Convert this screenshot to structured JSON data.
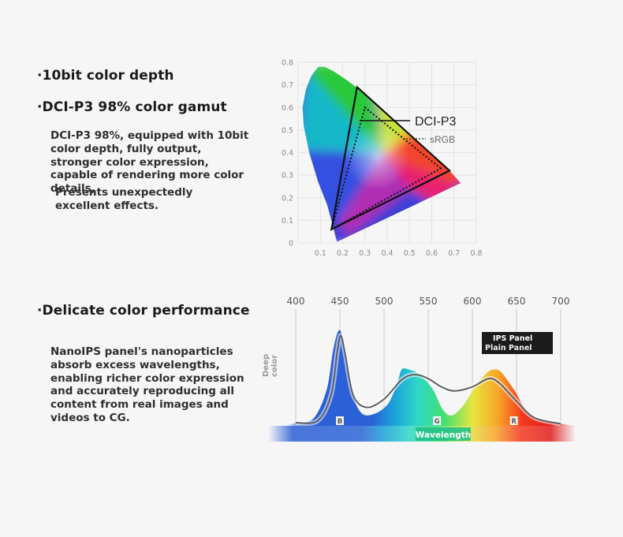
{
  "features": [
    {
      "heading": "·10bit color depth"
    },
    {
      "heading": "·DCI-P3 98% color gamut",
      "paragraph": "DCI-P3 98%, equipped with 10bit color depth, fully output, stronger color expression, capable of rendering more color details,",
      "paragraph2": "Presents unexpectedly excellent effects."
    },
    {
      "heading": "·Delicate color performance",
      "paragraph": "NanoIPS panel's nanoparticles absorb excess wavelengths, enabling richer color expression and accurately reproducing all content from real images and videos to CG."
    }
  ],
  "gamut_chart": {
    "type": "chromaticity-diagram",
    "x_ticks": [
      "0.1",
      "0.2",
      "0.3",
      "0.4",
      "0.5",
      "0.6",
      "0.7",
      "0.8"
    ],
    "y_ticks": [
      "0",
      "0.1",
      "0.2",
      "0.3",
      "0.4",
      "0.5",
      "0.6",
      "0.7",
      "0.8"
    ],
    "xlim": [
      0,
      0.8
    ],
    "ylim": [
      0,
      0.8
    ],
    "grid": true,
    "dci_label": "DCI-P3",
    "srgb_label": "sRGB",
    "dci_p3": [
      [
        0.68,
        0.32
      ],
      [
        0.265,
        0.69
      ],
      [
        0.15,
        0.06
      ]
    ],
    "srgb": [
      [
        0.64,
        0.33
      ],
      [
        0.3,
        0.6
      ],
      [
        0.15,
        0.06
      ]
    ],
    "colors": {
      "dci": "#111111",
      "srgb": "#111111"
    }
  },
  "spectrum_chart": {
    "type": "line",
    "x_ticks": [
      "400",
      "450",
      "500",
      "550",
      "600",
      "650",
      "700"
    ],
    "xlim": [
      400,
      700
    ],
    "ylabel": "Deep color",
    "xlabel": "Wavelength",
    "band_labels": [
      "B",
      "G",
      "R"
    ],
    "band_positions": [
      450,
      560,
      647
    ],
    "legend": [
      "IPS Panel",
      "Plain Panel"
    ],
    "legend_colors": [
      "#ffffff",
      "#eeeeee"
    ],
    "ips_panel_curve": [
      [
        400,
        0.03
      ],
      [
        420,
        0.07
      ],
      [
        435,
        0.35
      ],
      [
        442,
        0.72
      ],
      [
        447,
        0.9
      ],
      [
        451,
        0.92
      ],
      [
        456,
        0.72
      ],
      [
        464,
        0.32
      ],
      [
        475,
        0.12
      ],
      [
        490,
        0.12
      ],
      [
        505,
        0.22
      ],
      [
        515,
        0.42
      ],
      [
        520,
        0.55
      ],
      [
        528,
        0.55
      ],
      [
        540,
        0.5
      ],
      [
        555,
        0.36
      ],
      [
        565,
        0.18
      ],
      [
        575,
        0.1
      ],
      [
        588,
        0.18
      ],
      [
        605,
        0.4
      ],
      [
        617,
        0.52
      ],
      [
        625,
        0.55
      ],
      [
        633,
        0.52
      ],
      [
        648,
        0.34
      ],
      [
        660,
        0.16
      ],
      [
        675,
        0.06
      ],
      [
        700,
        0.02
      ]
    ],
    "plain_panel_curve": [
      [
        400,
        0.03
      ],
      [
        425,
        0.05
      ],
      [
        440,
        0.3
      ],
      [
        447,
        0.72
      ],
      [
        451,
        0.88
      ],
      [
        456,
        0.7
      ],
      [
        465,
        0.3
      ],
      [
        480,
        0.18
      ],
      [
        500,
        0.26
      ],
      [
        520,
        0.45
      ],
      [
        535,
        0.5
      ],
      [
        550,
        0.46
      ],
      [
        565,
        0.38
      ],
      [
        580,
        0.34
      ],
      [
        600,
        0.38
      ],
      [
        618,
        0.46
      ],
      [
        630,
        0.42
      ],
      [
        650,
        0.24
      ],
      [
        670,
        0.08
      ],
      [
        700,
        0.02
      ]
    ]
  }
}
